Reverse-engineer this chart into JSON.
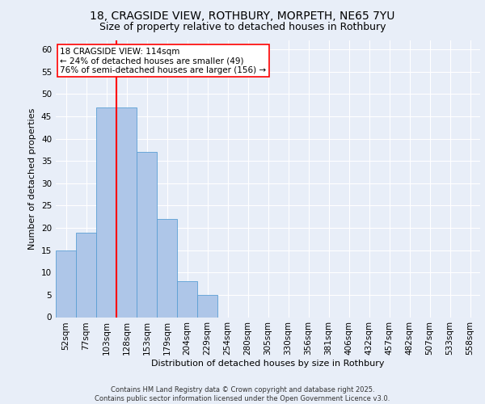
{
  "title1": "18, CRAGSIDE VIEW, ROTHBURY, MORPETH, NE65 7YU",
  "title2": "Size of property relative to detached houses in Rothbury",
  "xlabel": "Distribution of detached houses by size in Rothbury",
  "ylabel": "Number of detached properties",
  "all_categories": [
    "52sqm",
    "77sqm",
    "103sqm",
    "128sqm",
    "153sqm",
    "179sqm",
    "204sqm",
    "229sqm",
    "254sqm",
    "280sqm",
    "305sqm",
    "330sqm",
    "356sqm",
    "381sqm",
    "406sqm",
    "432sqm",
    "457sqm",
    "482sqm",
    "507sqm",
    "533sqm",
    "558sqm"
  ],
  "all_values": [
    15,
    19,
    47,
    47,
    37,
    22,
    8,
    5,
    0,
    0,
    0,
    0,
    0,
    0,
    0,
    0,
    0,
    0,
    0,
    0,
    0
  ],
  "ylim": [
    0,
    62
  ],
  "yticks": [
    0,
    5,
    10,
    15,
    20,
    25,
    30,
    35,
    40,
    45,
    50,
    55,
    60
  ],
  "bar_color": "#aec6e8",
  "bar_edge_color": "#5a9fd4",
  "vline_x": 2.5,
  "vline_color": "red",
  "annotation_text": "18 CRAGSIDE VIEW: 114sqm\n← 24% of detached houses are smaller (49)\n76% of semi-detached houses are larger (156) →",
  "annotation_box_color": "white",
  "annotation_box_edge": "red",
  "footer1": "Contains HM Land Registry data © Crown copyright and database right 2025.",
  "footer2": "Contains public sector information licensed under the Open Government Licence v3.0.",
  "background_color": "#e8eef8",
  "plot_background": "#e8eef8",
  "grid_color": "white",
  "title_fontsize": 10,
  "subtitle_fontsize": 9,
  "ylabel_fontsize": 8,
  "xlabel_fontsize": 8,
  "tick_fontsize": 7.5,
  "annotation_fontsize": 7.5,
  "footer_fontsize": 6
}
